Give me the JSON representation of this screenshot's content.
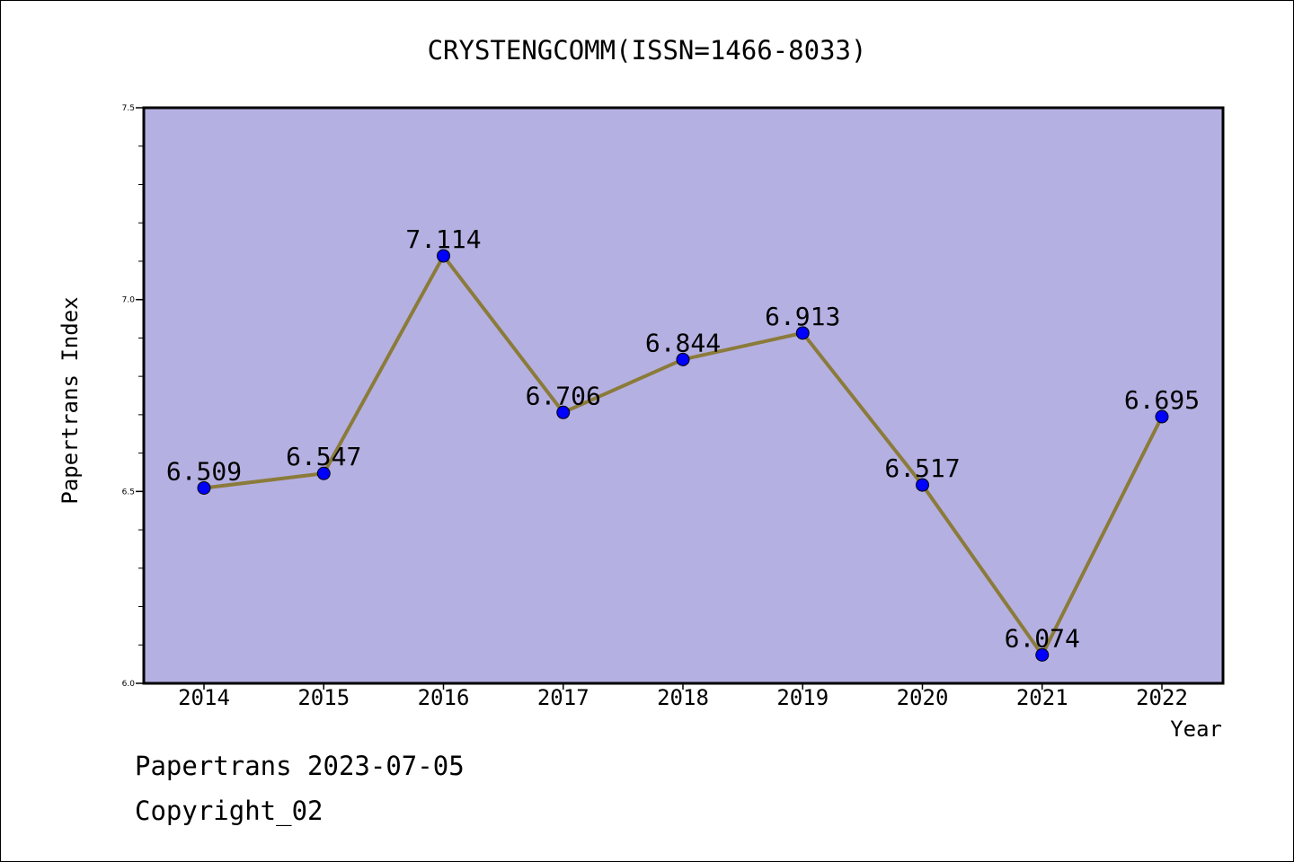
{
  "chart_data": {
    "type": "line",
    "title": "CRYSTENGCOMM(ISSN=1466-8033)",
    "xlabel": "Year",
    "ylabel": "Papertrans Index",
    "categories": [
      "2014",
      "2015",
      "2016",
      "2017",
      "2018",
      "2019",
      "2020",
      "2021",
      "2022"
    ],
    "series": [
      {
        "values": [
          6.509,
          6.547,
          7.114,
          6.706,
          6.844,
          6.913,
          6.517,
          6.074,
          6.695
        ],
        "labels": [
          "6.509",
          "6.547",
          "7.114",
          "6.706",
          "6.844",
          "6.913",
          "6.517",
          "6.074",
          "6.695"
        ]
      }
    ],
    "ylim": [
      6.0,
      7.5
    ],
    "yticks": [
      6.0,
      6.5,
      7.0,
      7.5
    ],
    "ytick_labels": [
      "6.0",
      "6.5",
      "7.0",
      "7.5"
    ],
    "grid": false,
    "colors": {
      "plot_background": "#b5b0e2",
      "line": "#8b7b3a",
      "marker": "#0000ff"
    }
  },
  "footer": {
    "line1": "Papertrans 2023-07-05",
    "line2": "Copyright_02"
  }
}
